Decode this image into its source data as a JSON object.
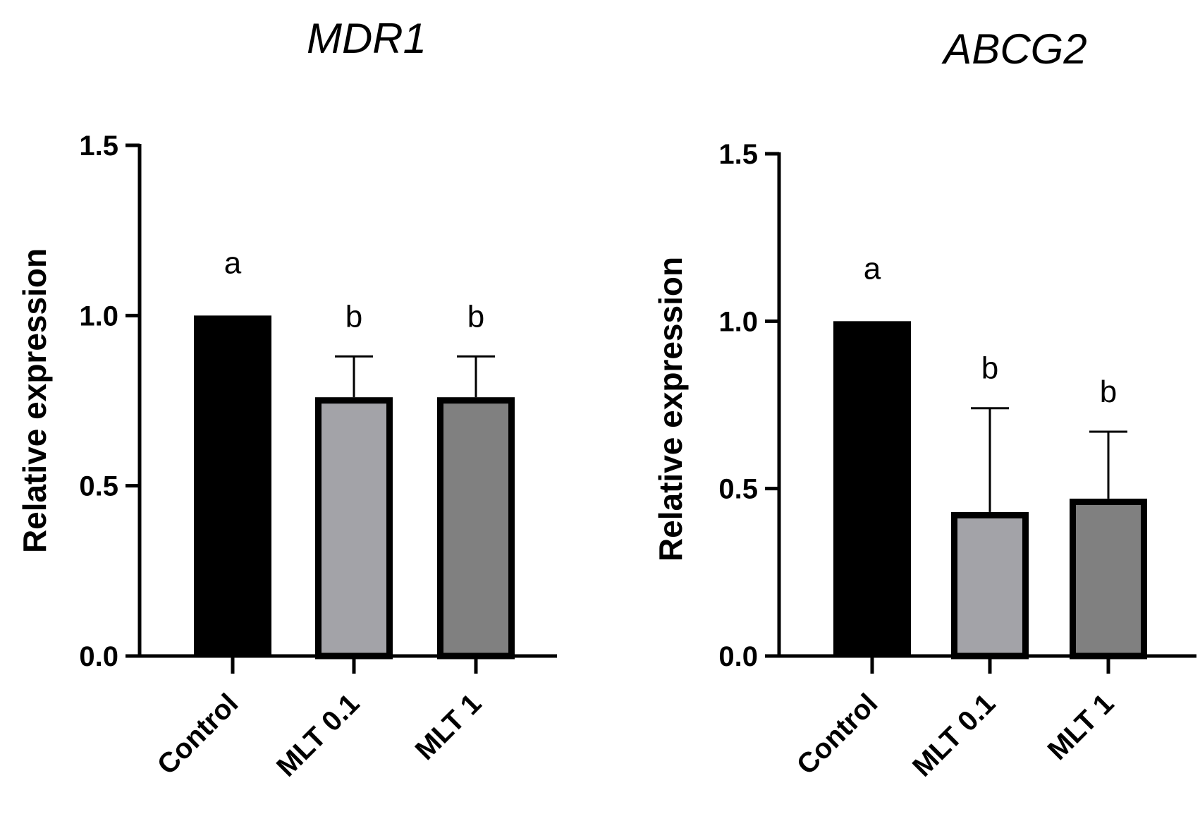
{
  "chart_data": [
    {
      "type": "bar",
      "title": "MDR1",
      "ylabel": "Relative expression",
      "xlabel": "",
      "ylim": [
        0,
        1.5
      ],
      "yticks": [
        "0.0",
        "0.5",
        "1.0",
        "1.5"
      ],
      "categories": [
        "Control",
        "MLT 0.1",
        "MLT 1"
      ],
      "values": [
        1.0,
        0.76,
        0.76
      ],
      "errors": [
        0,
        0.12,
        0.12
      ],
      "significance": [
        "a",
        "b",
        "b"
      ],
      "colors": [
        "#000000",
        "#a3a3a8",
        "#808080"
      ]
    },
    {
      "type": "bar",
      "title": "ABCG2",
      "ylabel": "Relative expression",
      "xlabel": "",
      "ylim": [
        0,
        1.5
      ],
      "yticks": [
        "0.0",
        "0.5",
        "1.0",
        "1.5"
      ],
      "categories": [
        "Control",
        "MLT 0.1",
        "MLT 1"
      ],
      "values": [
        1.0,
        0.43,
        0.47
      ],
      "errors": [
        0,
        0.31,
        0.2
      ],
      "significance": [
        "a",
        "b",
        "b"
      ],
      "colors": [
        "#000000",
        "#a3a3a8",
        "#808080"
      ]
    }
  ]
}
